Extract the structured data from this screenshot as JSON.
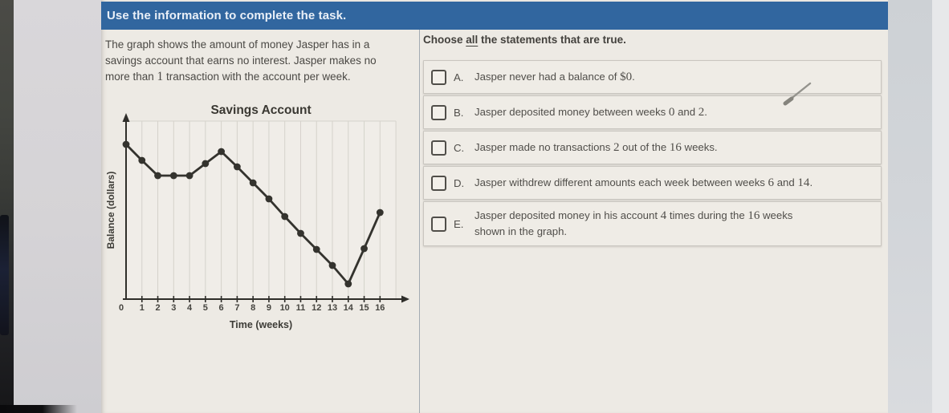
{
  "header": {
    "title": "Use the information to complete the task."
  },
  "left_panel": {
    "description_lines": [
      "The graph shows the amount of money Jasper has in a",
      "savings account that earns no interest. Jasper makes no",
      "more than `1` transaction with the account per week."
    ]
  },
  "chart_data": {
    "type": "line",
    "title": "Savings Account",
    "xlabel": "Time (weeks)",
    "ylabel": "Balance (dollars)",
    "x": [
      0,
      1,
      2,
      3,
      4,
      5,
      6,
      7,
      8,
      9,
      10,
      11,
      12,
      13,
      14,
      15,
      16
    ],
    "values": [
      9.65,
      8.65,
      7.7,
      7.7,
      7.7,
      8.45,
      9.2,
      8.25,
      7.25,
      6.25,
      5.15,
      4.1,
      3.1,
      2.1,
      0.95,
      3.15,
      5.4
    ],
    "x_tick_labels": [
      "0",
      "1",
      "2",
      "3",
      "4",
      "5",
      "6",
      "7",
      "8",
      "9",
      "10",
      "11",
      "12",
      "13",
      "14",
      "15",
      "16"
    ],
    "y_tick_labels": [],
    "xlim": [
      0,
      17
    ],
    "ylim": [
      0,
      11
    ],
    "grid": "vertical-only",
    "legend": "none",
    "marker": "filled-circle",
    "line_color": "#34332e",
    "note": "y-axis shows no numeric labels; balance values are relative units estimated from the plot"
  },
  "right_panel": {
    "prompt": "Choose *all* the statements that are true.",
    "statements": [
      {
        "letter": "A.",
        "checked": false,
        "lines": [
          "Jasper never had a balance of `$0`."
        ]
      },
      {
        "letter": "B.",
        "checked": false,
        "lines": [
          "Jasper deposited money between weeks `0` and `2`."
        ]
      },
      {
        "letter": "C.",
        "checked": false,
        "lines": [
          "Jasper made no transactions `2` out of the `16` weeks."
        ]
      },
      {
        "letter": "D.",
        "checked": false,
        "lines": [
          "Jasper withdrew different amounts each week between weeks `6` and `14`."
        ]
      },
      {
        "letter": "E.",
        "checked": false,
        "lines": [
          "Jasper deposited money in his account `4` times during the `16` weeks",
          "shown in the graph."
        ]
      }
    ]
  },
  "cursor": {
    "type": "pencil-mark"
  },
  "colors": {
    "header_bg": "#31669f",
    "header_text": "#e9eff7",
    "panel_bg": "#edeae4",
    "card_bg": "#efece6",
    "card_border": "#c9c6c0",
    "chart_line": "#34332e",
    "grid_line": "#d5d2cb",
    "axis": "#2f2e2a",
    "text": "#4f4d49"
  }
}
